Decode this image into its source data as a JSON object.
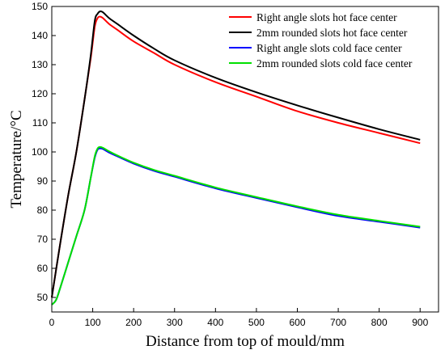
{
  "chart_data": {
    "type": "line",
    "title": "",
    "xlabel": "Distance from top of mould/mm",
    "ylabel": "Temperature/°C",
    "xlim": [
      0,
      945
    ],
    "ylim": [
      45,
      150
    ],
    "xticks": [
      0,
      100,
      200,
      300,
      400,
      500,
      600,
      700,
      800,
      900
    ],
    "yticks": [
      50,
      60,
      70,
      80,
      90,
      100,
      110,
      120,
      130,
      140,
      150
    ],
    "grid": false,
    "legend_position": "top-right",
    "series": [
      {
        "name": "Right angle slots hot face center",
        "color": "#ff0000",
        "x": [
          0,
          20,
          40,
          60,
          80,
          95,
          105,
          112,
          118,
          125,
          140,
          160,
          200,
          250,
          300,
          400,
          500,
          600,
          700,
          800,
          900
        ],
        "y": [
          50,
          68,
          85,
          100,
          118,
          132,
          143,
          146,
          146.5,
          146,
          144,
          142,
          138,
          134,
          130,
          124,
          119,
          114,
          110,
          106.5,
          103
        ]
      },
      {
        "name": "2mm rounded slots hot face center",
        "color": "#000000",
        "x": [
          0,
          20,
          40,
          60,
          80,
          95,
          105,
          112,
          118,
          125,
          140,
          160,
          200,
          250,
          300,
          400,
          500,
          600,
          700,
          800,
          900
        ],
        "y": [
          50,
          68,
          85,
          100,
          118,
          133,
          145,
          147.5,
          148.3,
          148,
          146,
          144,
          140,
          135.5,
          131.5,
          125.5,
          120.5,
          116,
          111.8,
          107.8,
          104.2
        ]
      },
      {
        "name": "Right angle slots cold face center",
        "color": "#0000ff",
        "x": [
          0,
          10,
          20,
          40,
          60,
          80,
          95,
          105,
          112,
          118,
          125,
          140,
          160,
          200,
          250,
          300,
          400,
          500,
          600,
          700,
          800,
          900
        ],
        "y": [
          47.5,
          49,
          53,
          62,
          71,
          80,
          91,
          98,
          100.8,
          101.2,
          101,
          99.8,
          98.5,
          96,
          93.5,
          91.5,
          87.5,
          84.2,
          81,
          78,
          76,
          74
        ]
      },
      {
        "name": "2mm rounded slots cold face center",
        "color": "#00e000",
        "x": [
          0,
          10,
          20,
          40,
          60,
          80,
          95,
          105,
          112,
          118,
          125,
          140,
          160,
          200,
          250,
          300,
          400,
          500,
          600,
          700,
          800,
          900
        ],
        "y": [
          47.5,
          49,
          53,
          62,
          71,
          80,
          91,
          98.5,
          101.2,
          101.7,
          101.4,
          100.2,
          98.8,
          96.3,
          93.8,
          91.8,
          87.8,
          84.5,
          81.3,
          78.4,
          76.3,
          74.3
        ]
      }
    ]
  }
}
